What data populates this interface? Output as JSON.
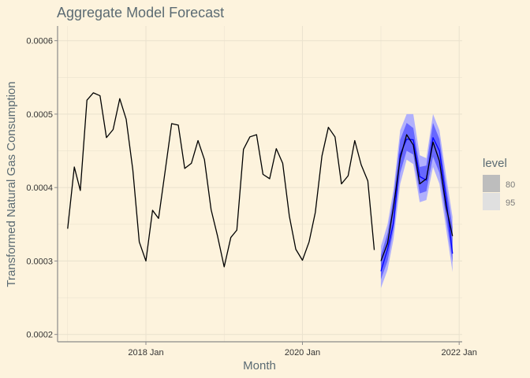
{
  "chart_data": {
    "type": "line",
    "title": "Aggregate Model Forecast",
    "xlabel": "Month",
    "ylabel": "Transformed Natural Gas Consumption",
    "xlim": [
      "2016-11-15",
      "2022-01-15"
    ],
    "ylim": [
      0.00019,
      0.00062
    ],
    "x_ticks": [
      {
        "date": "2018-01-01",
        "label": "2018 Jan"
      },
      {
        "date": "2020-01-01",
        "label": "2020 Jan"
      },
      {
        "date": "2022-01-01",
        "label": "2022 Jan"
      }
    ],
    "y_ticks": [
      {
        "value": 0.0002,
        "label": "0.0002"
      },
      {
        "value": 0.0003,
        "label": "0.0003"
      },
      {
        "value": 0.0004,
        "label": "0.0004"
      },
      {
        "value": 0.0005,
        "label": "0.0005"
      },
      {
        "value": 0.0006,
        "label": "0.0006"
      }
    ],
    "grid": true,
    "history": {
      "x": [
        "2017-01",
        "2017-02",
        "2017-03",
        "2017-04",
        "2017-05",
        "2017-06",
        "2017-07",
        "2017-08",
        "2017-09",
        "2017-10",
        "2017-11",
        "2017-12",
        "2018-01",
        "2018-02",
        "2018-03",
        "2018-04",
        "2018-05",
        "2018-06",
        "2018-07",
        "2018-08",
        "2018-09",
        "2018-10",
        "2018-11",
        "2018-12",
        "2019-01",
        "2019-02",
        "2019-03",
        "2019-04",
        "2019-05",
        "2019-06",
        "2019-07",
        "2019-08",
        "2019-09",
        "2019-10",
        "2019-11",
        "2019-12",
        "2020-01",
        "2020-02",
        "2020-03",
        "2020-04",
        "2020-05",
        "2020-06",
        "2020-07",
        "2020-08",
        "2020-09",
        "2020-10",
        "2020-11",
        "2020-12"
      ],
      "y": [
        0.000344,
        0.000428,
        0.000396,
        0.000519,
        0.000529,
        0.000525,
        0.000468,
        0.000479,
        0.000521,
        0.000493,
        0.000424,
        0.000326,
        0.0003,
        0.000369,
        0.000358,
        0.000423,
        0.000487,
        0.000485,
        0.000426,
        0.000433,
        0.000464,
        0.000438,
        0.00037,
        0.000334,
        0.000292,
        0.000332,
        0.000342,
        0.000452,
        0.000469,
        0.000472,
        0.000418,
        0.000412,
        0.000453,
        0.000433,
        0.000361,
        0.000316,
        0.000301,
        0.000326,
        0.000366,
        0.000443,
        0.000482,
        0.000469,
        0.000405,
        0.000416,
        0.000464,
        0.000431,
        0.000409,
        0.000315
      ]
    },
    "forecast": {
      "x": [
        "2021-01",
        "2021-02",
        "2021-03",
        "2021-04",
        "2021-05",
        "2021-06",
        "2021-07",
        "2021-08",
        "2021-09",
        "2021-10",
        "2021-11",
        "2021-12"
      ],
      "series": [
        {
          "y": [
            0.0003,
            0.000324,
            0.000374,
            0.00044,
            0.000472,
            0.000458,
            0.000405,
            0.000412,
            0.000462,
            0.000436,
            0.000374,
            0.000334
          ]
        },
        {
          "y": [
            0.000286,
            0.000316,
            0.000352,
            0.000445,
            0.000466,
            0.000465,
            0.000415,
            0.00041,
            0.000468,
            0.00045,
            0.000385,
            0.00031
          ]
        }
      ],
      "band80_lower": [
        0.000275,
        0.0003,
        0.000343,
        0.00042,
        0.00045,
        0.000445,
        0.000392,
        0.000395,
        0.000442,
        0.00042,
        0.000358,
        0.000298
      ],
      "band80_upper": [
        0.000308,
        0.000338,
        0.000387,
        0.000465,
        0.000488,
        0.000481,
        0.000428,
        0.00043,
        0.000488,
        0.000466,
        0.000402,
        0.000346
      ],
      "band95_lower": [
        0.000263,
        0.000288,
        0.00033,
        0.000405,
        0.000438,
        0.000432,
        0.00038,
        0.000383,
        0.000428,
        0.000405,
        0.000344,
        0.000285
      ],
      "band95_upper": [
        0.00032,
        0.00035,
        0.000398,
        0.000478,
        0.0005,
        0.0005,
        0.000444,
        0.00044,
        0.0005,
        0.000478,
        0.000416,
        0.00036
      ]
    },
    "legend": {
      "title": "level",
      "position": "right",
      "entries": [
        {
          "label": "80"
        },
        {
          "label": "95"
        }
      ]
    },
    "colors": {
      "background": "#fdf3dd",
      "history_line": "#000000",
      "forecast_line": "#0000ff",
      "band80": "#5b5bff",
      "band95": "#a8a8ff",
      "legend80": "#bdbdbd",
      "legend95": "#e0e0e0",
      "axis": "#8a8a8a",
      "grid": "#ebe3cf"
    }
  }
}
